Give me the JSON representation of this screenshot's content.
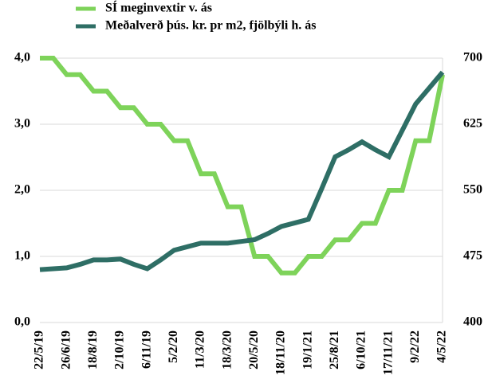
{
  "chart_data": {
    "type": "line",
    "categories": [
      "22/5/19",
      null,
      "26/6/19",
      null,
      "18/8/19",
      null,
      "2/10/19",
      null,
      "6/11/19",
      null,
      "5/2/20",
      null,
      "11/3/20",
      null,
      "18/3/20",
      null,
      "20/5/20",
      null,
      "18/11/20",
      null,
      "19/1/21",
      null,
      "25/8/21",
      null,
      "6/10/21",
      null,
      "17/11/21",
      null,
      "9/2/22",
      null,
      "4/5/22"
    ],
    "series": [
      {
        "name": "SÍ meginvextir v. ás",
        "color": "#7ed35a",
        "axis": "y",
        "values": [
          4,
          4,
          3.75,
          3.75,
          3.5,
          3.5,
          3.25,
          3.25,
          3,
          3,
          2.75,
          2.75,
          2.25,
          2.25,
          1.75,
          1.75,
          1,
          1,
          0.75,
          0.75,
          1,
          1,
          1.25,
          1.25,
          1.5,
          1.5,
          2,
          2,
          2.75,
          2.75,
          3.75
        ]
      },
      {
        "name": "Meðalverð þús. kr. pr m2, fjölbýli h. ás",
        "color": "#2e6e65",
        "axis": "y2",
        "values": [
          460,
          461,
          462,
          466,
          471,
          471,
          472,
          466,
          461,
          471,
          482,
          486,
          490,
          490,
          490,
          492,
          494,
          501,
          509,
          513,
          517,
          552,
          588,
          596,
          605,
          596,
          588,
          618,
          648,
          666,
          684
        ]
      }
    ],
    "ylim": [
      0,
      4
    ],
    "yticks": [
      {
        "value": 0,
        "label": "0,0"
      },
      {
        "value": 1,
        "label": "1,0"
      },
      {
        "value": 2,
        "label": "2,0"
      },
      {
        "value": 3,
        "label": "3,0"
      },
      {
        "value": 4,
        "label": "4,0"
      }
    ],
    "y2lim": [
      400,
      700
    ],
    "y2ticks": [
      400,
      475,
      550,
      625,
      700
    ],
    "grid": true
  }
}
